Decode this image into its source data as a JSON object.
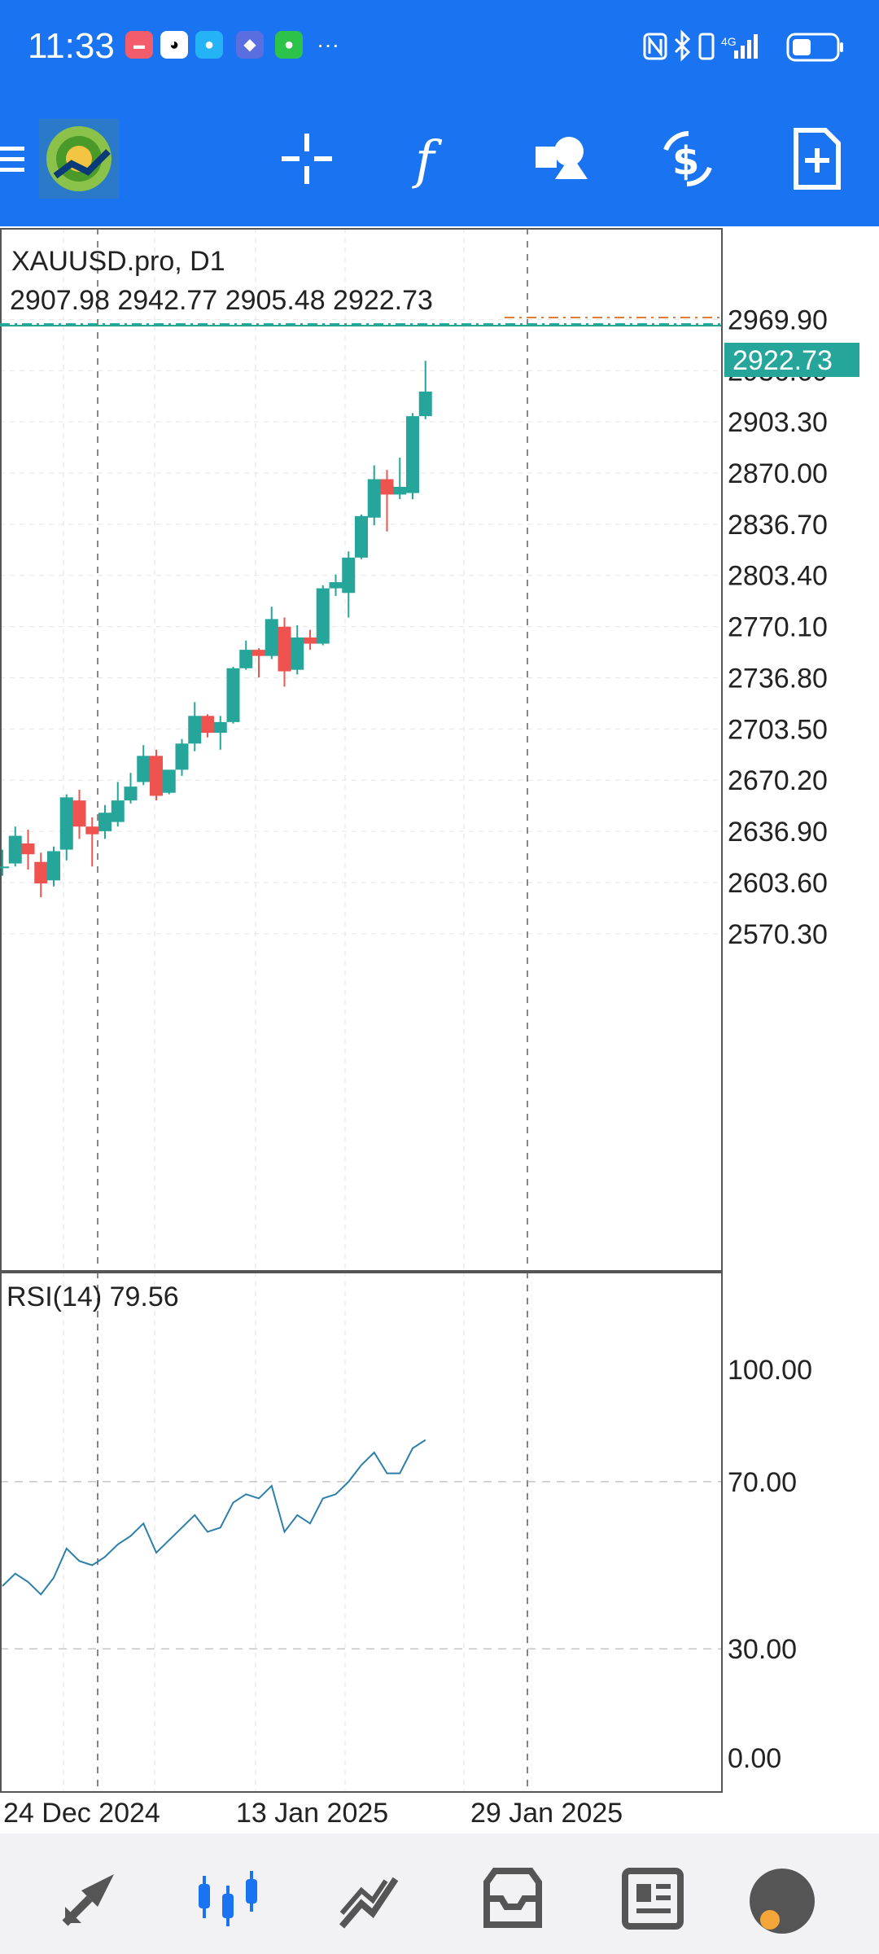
{
  "status_bar": {
    "time": "11:33",
    "network": "4G",
    "icons": [
      "huawei-app-icon",
      "qq-icon",
      "message-icon",
      "security-icon",
      "wechat-icon",
      "more-icon",
      "nfc-icon",
      "bluetooth-icon",
      "vibrate-icon",
      "signal-icon",
      "battery-icon"
    ]
  },
  "toolbar": {
    "logo": "metatrader-4-logo",
    "buttons": [
      "menu-icon",
      "crosshair-icon",
      "indicators-icon",
      "objects-icon",
      "symbol-change-icon",
      "new-order-icon"
    ]
  },
  "chart": {
    "symbol_label": "XAUUSD.pro, D1",
    "ohlc_label": "2907.98 2942.77 2905.48 2922.73",
    "current_price": "2922.73",
    "price_ticks": [
      "2969.90",
      "2936.60",
      "2903.30",
      "2870.00",
      "2836.70",
      "2803.40",
      "2770.10",
      "2736.80",
      "2703.50",
      "2670.20",
      "2636.90",
      "2603.60",
      "2570.30"
    ],
    "date_ticks": [
      "24 Dec 2024",
      "13 Jan 2025",
      "29 Jan 2025"
    ],
    "colors": {
      "bull": "#26a69a",
      "bear": "#ef5350",
      "grid": "#d8d8d8",
      "price_line": "#26a69a"
    }
  },
  "rsi": {
    "label": "RSI(14) 79.56",
    "ticks": [
      "100.00",
      "70.00",
      "30.00",
      "0.00"
    ]
  },
  "chart_data": {
    "type": "candlestick",
    "title": "XAUUSD.pro, D1",
    "ylim": [
      2540,
      2980
    ],
    "candles": [
      {
        "o": 2613,
        "h": 2625,
        "l": 2608,
        "c": 2614
      },
      {
        "o": 2616,
        "h": 2640,
        "l": 2614,
        "c": 2634
      },
      {
        "o": 2629,
        "h": 2638,
        "l": 2612,
        "c": 2622
      },
      {
        "o": 2617,
        "h": 2623,
        "l": 2594,
        "c": 2603
      },
      {
        "o": 2605,
        "h": 2627,
        "l": 2601,
        "c": 2624
      },
      {
        "o": 2625,
        "h": 2661,
        "l": 2618,
        "c": 2659
      },
      {
        "o": 2657,
        "h": 2664,
        "l": 2632,
        "c": 2640
      },
      {
        "o": 2640,
        "h": 2646,
        "l": 2614,
        "c": 2635
      },
      {
        "o": 2637,
        "h": 2654,
        "l": 2632,
        "c": 2649
      },
      {
        "o": 2643,
        "h": 2669,
        "l": 2640,
        "c": 2657
      },
      {
        "o": 2657,
        "h": 2675,
        "l": 2655,
        "c": 2666
      },
      {
        "o": 2669,
        "h": 2693,
        "l": 2667,
        "c": 2686
      },
      {
        "o": 2686,
        "h": 2690,
        "l": 2657,
        "c": 2660
      },
      {
        "o": 2662,
        "h": 2676,
        "l": 2661,
        "c": 2677
      },
      {
        "o": 2677,
        "h": 2697,
        "l": 2673,
        "c": 2694
      },
      {
        "o": 2694,
        "h": 2721,
        "l": 2689,
        "c": 2712
      },
      {
        "o": 2712,
        "h": 2713,
        "l": 2698,
        "c": 2701
      },
      {
        "o": 2701,
        "h": 2712,
        "l": 2690,
        "c": 2708
      },
      {
        "o": 2708,
        "h": 2744,
        "l": 2707,
        "c": 2743
      },
      {
        "o": 2743,
        "h": 2761,
        "l": 2742,
        "c": 2755
      },
      {
        "o": 2755,
        "h": 2756,
        "l": 2737,
        "c": 2751
      },
      {
        "o": 2751,
        "h": 2783,
        "l": 2749,
        "c": 2775
      },
      {
        "o": 2770,
        "h": 2776,
        "l": 2731,
        "c": 2741
      },
      {
        "o": 2742,
        "h": 2771,
        "l": 2739,
        "c": 2763
      },
      {
        "o": 2763,
        "h": 2768,
        "l": 2755,
        "c": 2759
      },
      {
        "o": 2759,
        "h": 2797,
        "l": 2758,
        "c": 2795
      },
      {
        "o": 2795,
        "h": 2804,
        "l": 2790,
        "c": 2799
      },
      {
        "o": 2792,
        "h": 2819,
        "l": 2776,
        "c": 2815
      },
      {
        "o": 2815,
        "h": 2843,
        "l": 2814,
        "c": 2842
      },
      {
        "o": 2841,
        "h": 2875,
        "l": 2836,
        "c": 2866
      },
      {
        "o": 2866,
        "h": 2872,
        "l": 2832,
        "c": 2856
      },
      {
        "o": 2856,
        "h": 2880,
        "l": 2853,
        "c": 2861
      },
      {
        "o": 2857,
        "h": 2909,
        "l": 2853,
        "c": 2907
      },
      {
        "o": 2907,
        "h": 2943,
        "l": 2905,
        "c": 2923
      }
    ],
    "rsi_values": [
      45,
      48,
      46,
      43,
      47,
      54,
      51,
      50,
      52,
      55,
      57,
      60,
      53,
      56,
      59,
      62,
      58,
      59,
      65,
      67,
      66,
      69,
      58,
      62,
      60,
      66,
      67,
      70,
      74,
      77,
      72,
      72,
      78,
      80
    ]
  }
}
